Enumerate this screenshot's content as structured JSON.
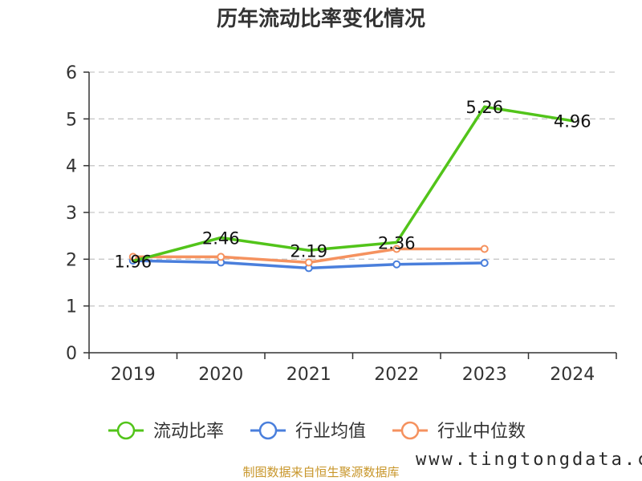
{
  "chart_data": {
    "type": "line",
    "title": "历年流动比率变化情况",
    "categories": [
      "2019",
      "2020",
      "2021",
      "2022",
      "2023",
      "2024"
    ],
    "ylim": [
      0,
      6
    ],
    "yticks": [
      0,
      1,
      2,
      3,
      4,
      5,
      6
    ],
    "grid": true,
    "legend_position": "bottom",
    "series": [
      {
        "name": "流动比率",
        "color": "#52c41a",
        "marker": "none",
        "values": [
          1.96,
          2.46,
          2.19,
          2.36,
          5.26,
          4.96
        ],
        "labels": [
          "1.96",
          "2.46",
          "2.19",
          "2.36",
          "5.26",
          "4.96"
        ]
      },
      {
        "name": "行业均值",
        "color": "#4a7fdc",
        "marker": "circle",
        "values": [
          1.97,
          1.93,
          1.81,
          1.89,
          1.92,
          null
        ]
      },
      {
        "name": "行业中位数",
        "color": "#f5925f",
        "marker": "circle",
        "values": [
          2.05,
          2.05,
          1.93,
          2.22,
          2.22,
          null
        ]
      }
    ]
  },
  "source_text": "制图数据来自恒生聚源数据库",
  "watermark_text": "www.tingtongdata.com"
}
